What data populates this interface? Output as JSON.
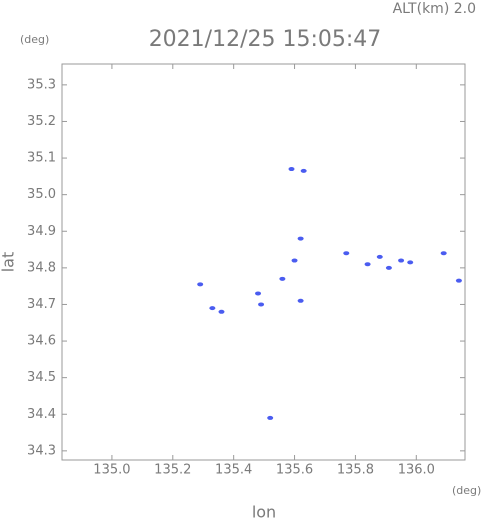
{
  "chart_data": {
    "type": "scatter",
    "title": "2021/12/25 15:05:47",
    "annotation": "ALT(km) 2.0",
    "y_unit": "(deg)",
    "x_unit": "(deg)",
    "xlabel": "lon",
    "ylabel": "lat",
    "xlim": [
      134.836,
      136.16
    ],
    "ylim": [
      34.275,
      35.357
    ],
    "xticks": [
      {
        "value": 135,
        "label": "135.0"
      },
      135.2,
      135.4,
      135.6,
      135.8,
      {
        "value": 136,
        "label": "136.0"
      }
    ],
    "yticks": [
      34.3,
      34.4,
      34.5,
      34.6,
      34.7,
      34.8,
      34.9,
      {
        "value": 35,
        "label": "35.0"
      },
      35.1,
      35.2,
      35.3
    ],
    "color": "#4a5cf0",
    "x": [
      135.52,
      135.95,
      135.98,
      136.14,
      135.88,
      135.84,
      135.29,
      135.48,
      135.56,
      135.6,
      135.62,
      135.59,
      135.63,
      135.33,
      135.36,
      135.49,
      135.62,
      136.09,
      135.77,
      135.91
    ],
    "values": [
      34.39,
      34.82,
      34.815,
      34.765,
      34.83,
      34.81,
      34.755,
      34.73,
      34.77,
      34.82,
      34.88,
      35.07,
      35.065,
      34.69,
      34.68,
      34.7,
      34.71,
      34.84,
      34.84,
      34.8
    ]
  }
}
